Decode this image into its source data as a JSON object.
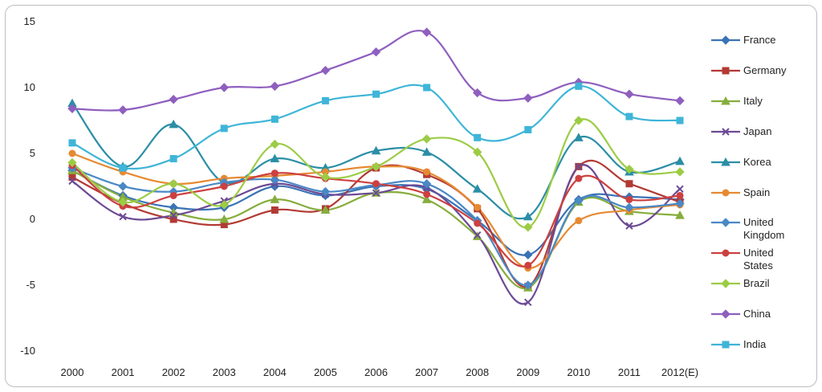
{
  "chart_data": {
    "type": "line",
    "title": "",
    "xlabel": "",
    "ylabel": "",
    "categories": [
      "2000",
      "2001",
      "2002",
      "2003",
      "2004",
      "2005",
      "2006",
      "2007",
      "2008",
      "2009",
      "2010",
      "2011",
      "2012(E)"
    ],
    "ylim": [
      -10,
      15
    ],
    "yticks": [
      -10,
      -5,
      0,
      5,
      10,
      15
    ],
    "grid": false,
    "legend_position": "right",
    "series": [
      {
        "name": "France",
        "color": "#3a73b6",
        "marker": "diamond",
        "values": [
          3.7,
          1.8,
          0.9,
          0.9,
          2.5,
          1.8,
          2.5,
          2.3,
          -0.1,
          -2.7,
          1.5,
          1.7,
          1.5
        ]
      },
      {
        "name": "Germany",
        "color": "#b23a34",
        "marker": "square",
        "values": [
          3.2,
          1.2,
          0.0,
          -0.4,
          0.7,
          0.8,
          3.9,
          3.4,
          0.8,
          -5.1,
          4.0,
          2.7,
          1.3
        ]
      },
      {
        "name": "Italy",
        "color": "#86ad3c",
        "marker": "triangle",
        "values": [
          3.7,
          1.7,
          0.5,
          0.0,
          1.5,
          0.7,
          2.0,
          1.5,
          -1.3,
          -5.2,
          1.3,
          0.6,
          0.3
        ]
      },
      {
        "name": "Japan",
        "color": "#6c4a94",
        "marker": "x",
        "values": [
          2.9,
          0.2,
          0.3,
          1.4,
          2.7,
          1.9,
          2.0,
          2.4,
          -1.2,
          -6.3,
          4.0,
          -0.5,
          2.3
        ]
      },
      {
        "name": "Korea",
        "color": "#2b8ea6",
        "marker": "triangle",
        "values": [
          8.8,
          4.0,
          7.2,
          2.8,
          4.6,
          3.9,
          5.2,
          5.1,
          2.3,
          0.2,
          6.2,
          3.6,
          4.4
        ]
      },
      {
        "name": "Spain",
        "color": "#e58a32",
        "marker": "circle",
        "values": [
          5.0,
          3.6,
          2.7,
          3.1,
          3.3,
          3.6,
          4.0,
          3.6,
          0.9,
          -3.7,
          -0.1,
          0.7,
          1.1
        ]
      },
      {
        "name": "United Kingdom",
        "color": "#4a88c6",
        "marker": "diamond",
        "values": [
          3.9,
          2.5,
          2.1,
          2.8,
          3.0,
          2.1,
          2.6,
          2.7,
          -0.1,
          -5.0,
          1.4,
          0.9,
          1.2
        ]
      },
      {
        "name": "United States",
        "color": "#cc4040",
        "marker": "circle",
        "values": [
          4.1,
          1.0,
          1.8,
          2.5,
          3.5,
          3.1,
          2.7,
          1.9,
          -0.3,
          -3.5,
          3.1,
          1.5,
          1.8
        ]
      },
      {
        "name": "Brazil",
        "color": "#9ccc45",
        "marker": "diamond",
        "values": [
          4.3,
          1.3,
          2.7,
          1.1,
          5.7,
          3.2,
          4.0,
          6.1,
          5.1,
          -0.6,
          7.5,
          3.8,
          3.6
        ]
      },
      {
        "name": "China",
        "color": "#8f5fbf",
        "marker": "diamond",
        "values": [
          8.4,
          8.3,
          9.1,
          10.0,
          10.1,
          11.3,
          12.7,
          14.2,
          9.6,
          9.2,
          10.4,
          9.5,
          9.0
        ]
      },
      {
        "name": "India",
        "color": "#3fb5d8",
        "marker": "square",
        "values": [
          5.8,
          3.9,
          4.6,
          6.9,
          7.6,
          9.0,
          9.5,
          10.0,
          6.2,
          6.8,
          10.1,
          7.8,
          7.5
        ]
      }
    ]
  }
}
